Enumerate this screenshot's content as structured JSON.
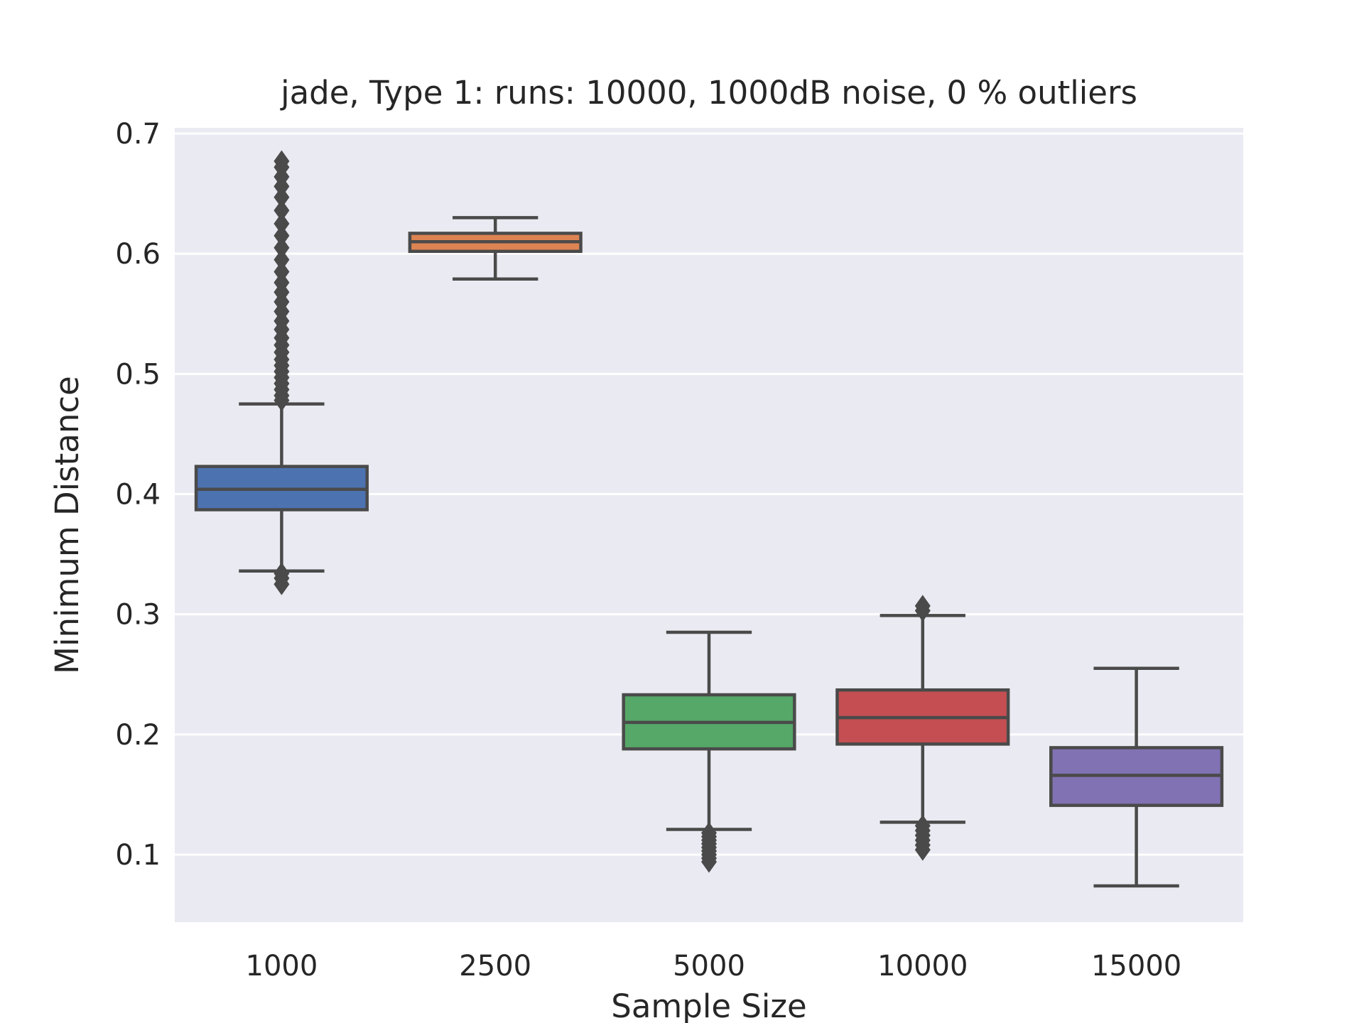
{
  "chart_data": {
    "type": "box",
    "title": "jade,  Type 1:  runs: 10000, 1000dB noise, 0 % outliers",
    "xlabel": "Sample Size",
    "ylabel": "Minimum Distance",
    "ylim": [
      0.044,
      0.7
    ],
    "yticks": [
      "0.1",
      "0.2",
      "0.3",
      "0.4",
      "0.5",
      "0.6",
      "0.7"
    ],
    "grid": true,
    "categories": [
      "1000",
      "2500",
      "5000",
      "10000",
      "15000"
    ],
    "colors": [
      "#4c72b0",
      "#dd8452",
      "#55a868",
      "#c44e52",
      "#8172b3"
    ],
    "boxes": [
      {
        "category": "1000",
        "whislo": 0.336,
        "q1": 0.387,
        "median": 0.404,
        "q3": 0.423,
        "whishi": 0.475,
        "fliers": [
          0.325,
          0.33,
          0.334,
          0.478,
          0.482,
          0.487,
          0.492,
          0.497,
          0.502,
          0.507,
          0.512,
          0.518,
          0.524,
          0.53,
          0.537,
          0.544,
          0.552,
          0.56,
          0.568,
          0.576,
          0.585,
          0.595,
          0.605,
          0.615,
          0.625,
          0.636,
          0.647,
          0.656,
          0.664,
          0.672,
          0.677
        ]
      },
      {
        "category": "2500",
        "whislo": 0.579,
        "q1": 0.602,
        "median": 0.61,
        "q3": 0.617,
        "whishi": 0.63,
        "fliers": []
      },
      {
        "category": "5000",
        "whislo": 0.121,
        "q1": 0.188,
        "median": 0.21,
        "q3": 0.233,
        "whishi": 0.285,
        "fliers": [
          0.094,
          0.097,
          0.1,
          0.103,
          0.106,
          0.109,
          0.112,
          0.115,
          0.118
        ]
      },
      {
        "category": "10000",
        "whislo": 0.127,
        "q1": 0.192,
        "median": 0.214,
        "q3": 0.237,
        "whishi": 0.299,
        "fliers": [
          0.104,
          0.108,
          0.112,
          0.116,
          0.12,
          0.124,
          0.303,
          0.307
        ]
      },
      {
        "category": "15000",
        "whislo": 0.074,
        "q1": 0.141,
        "median": 0.166,
        "q3": 0.189,
        "whishi": 0.255,
        "fliers": []
      }
    ]
  }
}
